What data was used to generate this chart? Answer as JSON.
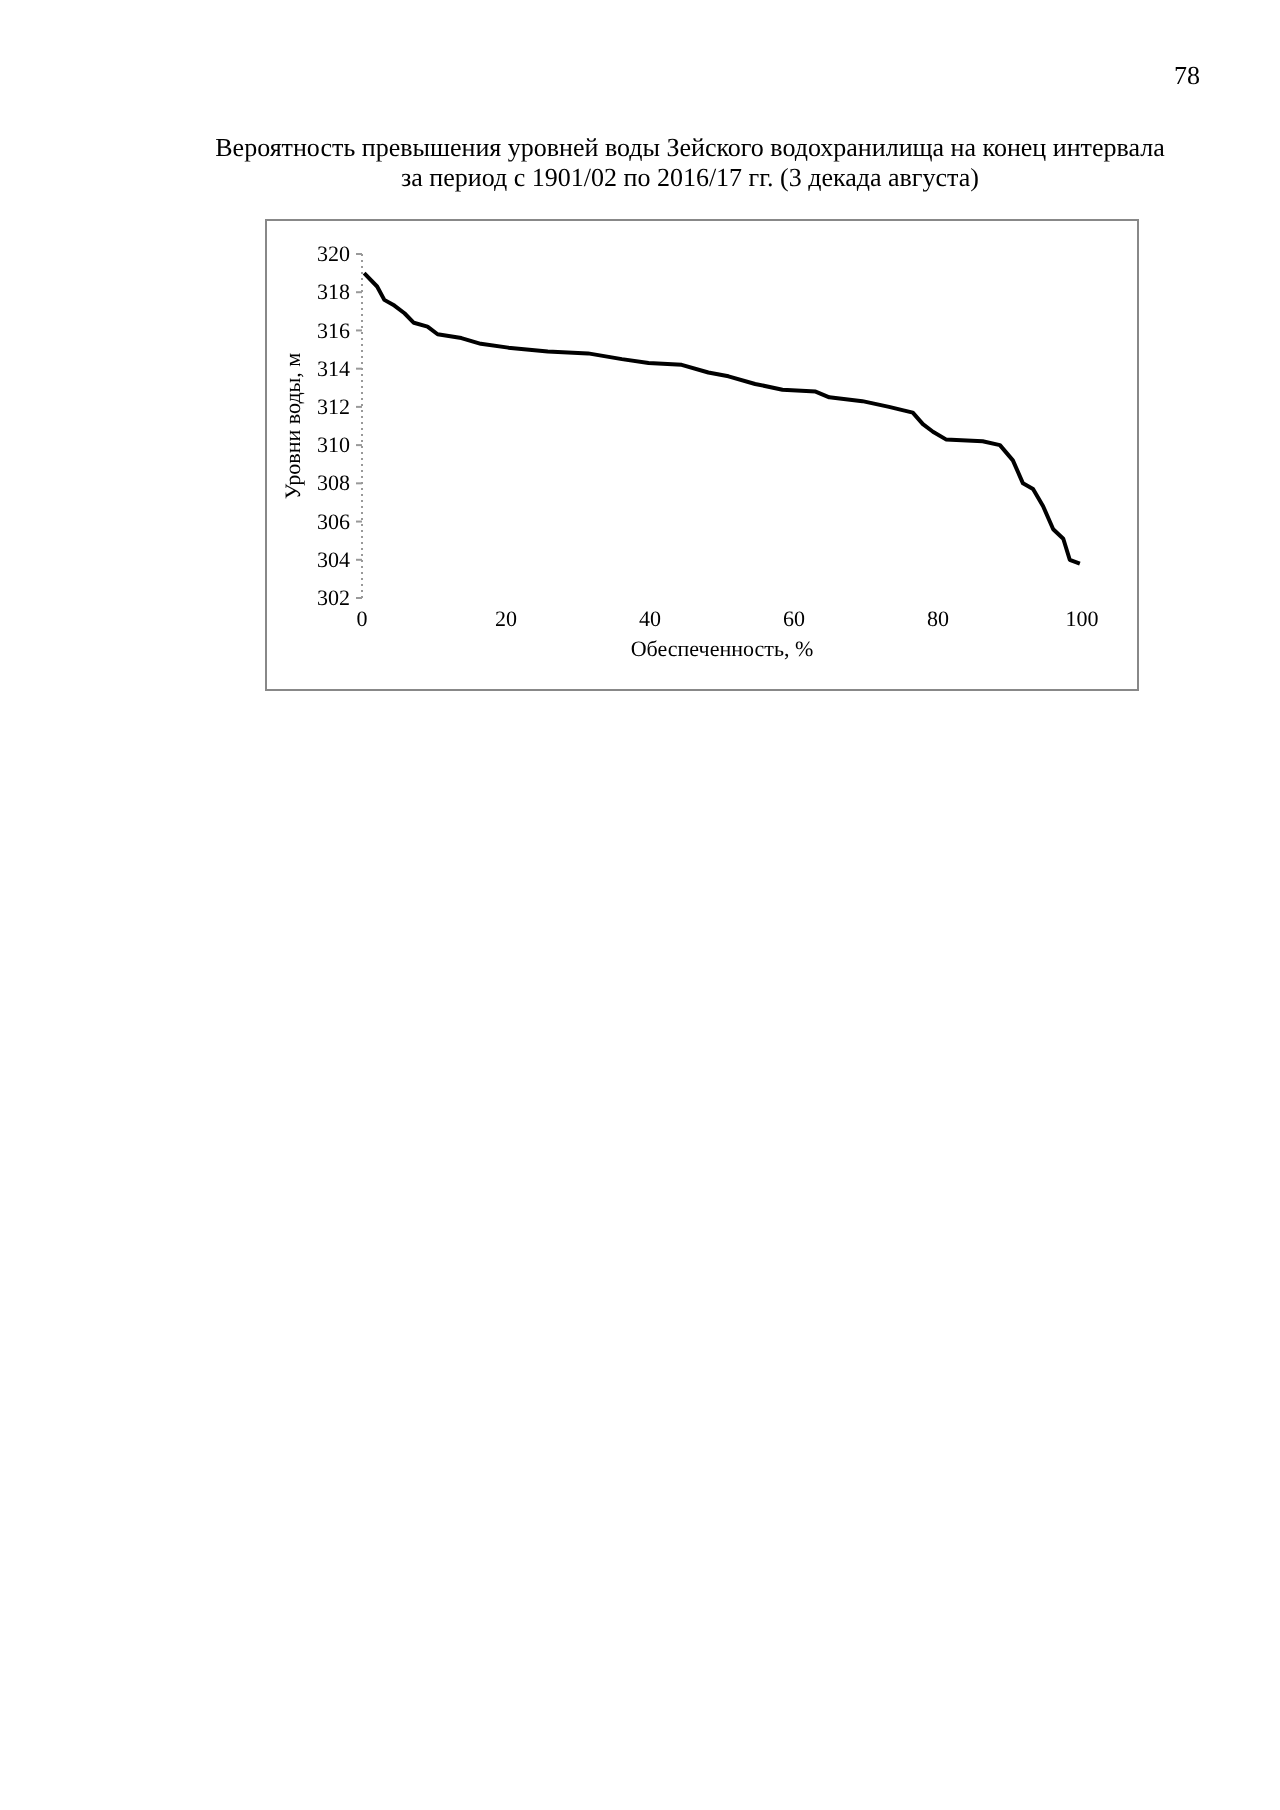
{
  "chart_data": {
    "type": "line",
    "title": "Вероятность превышения уровней воды Зейского водохранилища на конец интервала\nза период с 1901/02 по 2016/17 гг. (3 декада августа)",
    "xlabel": "Обеспеченность, %",
    "ylabel": "Уровни воды, м",
    "annotations": [
      "78"
    ],
    "series": [
      {
        "color": "#000000",
        "x": [
          0.3,
          2.1,
          3.1,
          4.5,
          5.9,
          7.2,
          9.1,
          10.5,
          13.8,
          16.5,
          20.3,
          25.8,
          31.4,
          36.1,
          39.8,
          44.4,
          48.1,
          50.9,
          54.6,
          58.4,
          63.0,
          64.9,
          69.5,
          73.2,
          76.5,
          77.9,
          79.3,
          81.1,
          86.2,
          88.6,
          90.4,
          91.8,
          93.2,
          94.6,
          96.0,
          97.4,
          98.3,
          99.7
        ],
        "values": [
          319.0,
          318.3,
          317.6,
          317.3,
          316.9,
          316.4,
          316.2,
          315.8,
          315.6,
          315.3,
          315.1,
          314.9,
          314.8,
          314.5,
          314.3,
          314.2,
          313.8,
          313.6,
          313.2,
          312.9,
          312.8,
          312.5,
          312.3,
          312.0,
          311.7,
          311.1,
          310.7,
          310.3,
          310.2,
          310.0,
          309.2,
          308.0,
          307.7,
          306.8,
          305.6,
          305.1,
          304.0,
          303.8
        ]
      }
    ],
    "xlim": [
      0,
      100
    ],
    "xticks": [
      0,
      20,
      40,
      60,
      80,
      100
    ],
    "ylim": [
      302,
      320
    ],
    "yticks": [
      302,
      304,
      306,
      308,
      310,
      312,
      314,
      316,
      318,
      320
    ],
    "grid": false,
    "marker": "none",
    "line_style": "solid"
  }
}
